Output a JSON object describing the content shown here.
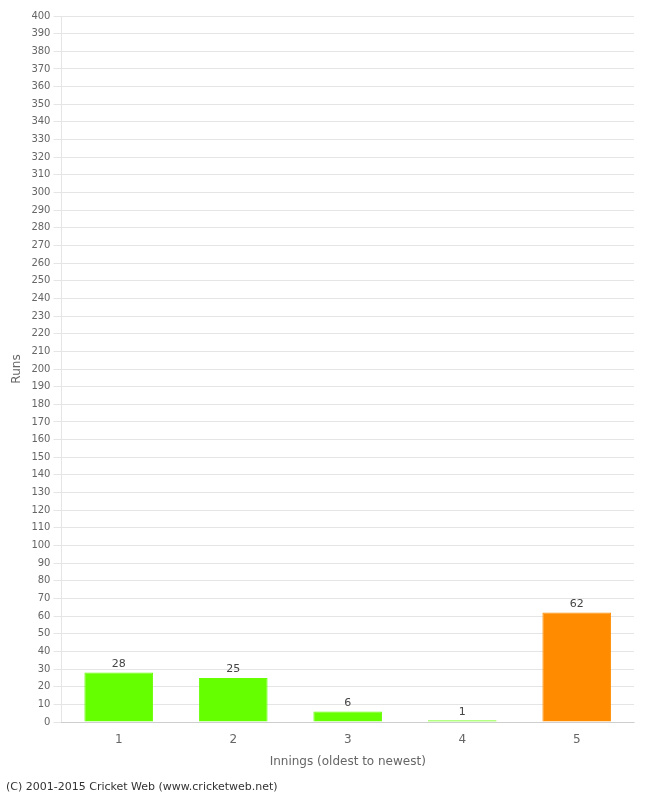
{
  "chart_data": {
    "type": "bar",
    "categories": [
      "1",
      "2",
      "3",
      "4",
      "5"
    ],
    "values": [
      28,
      25,
      6,
      1,
      62
    ],
    "colors": [
      "#66ff00",
      "#66ff00",
      "#66ff00",
      "#66ff00",
      "#ff8c00"
    ],
    "xlabel": "Innings (oldest to newest)",
    "ylabel": "Runs",
    "ylim": [
      0,
      400
    ],
    "yticks": [
      0,
      10,
      20,
      30,
      40,
      50,
      60,
      70,
      80,
      90,
      100,
      110,
      120,
      130,
      140,
      150,
      160,
      170,
      180,
      190,
      200,
      210,
      220,
      230,
      240,
      250,
      260,
      270,
      280,
      290,
      300,
      310,
      320,
      330,
      340,
      350,
      360,
      370,
      380,
      390,
      400
    ],
    "grid": true,
    "data_labels": true,
    "annotations": [
      "(C) 2001-2015 Cricket Web (www.cricketweb.net)"
    ]
  }
}
